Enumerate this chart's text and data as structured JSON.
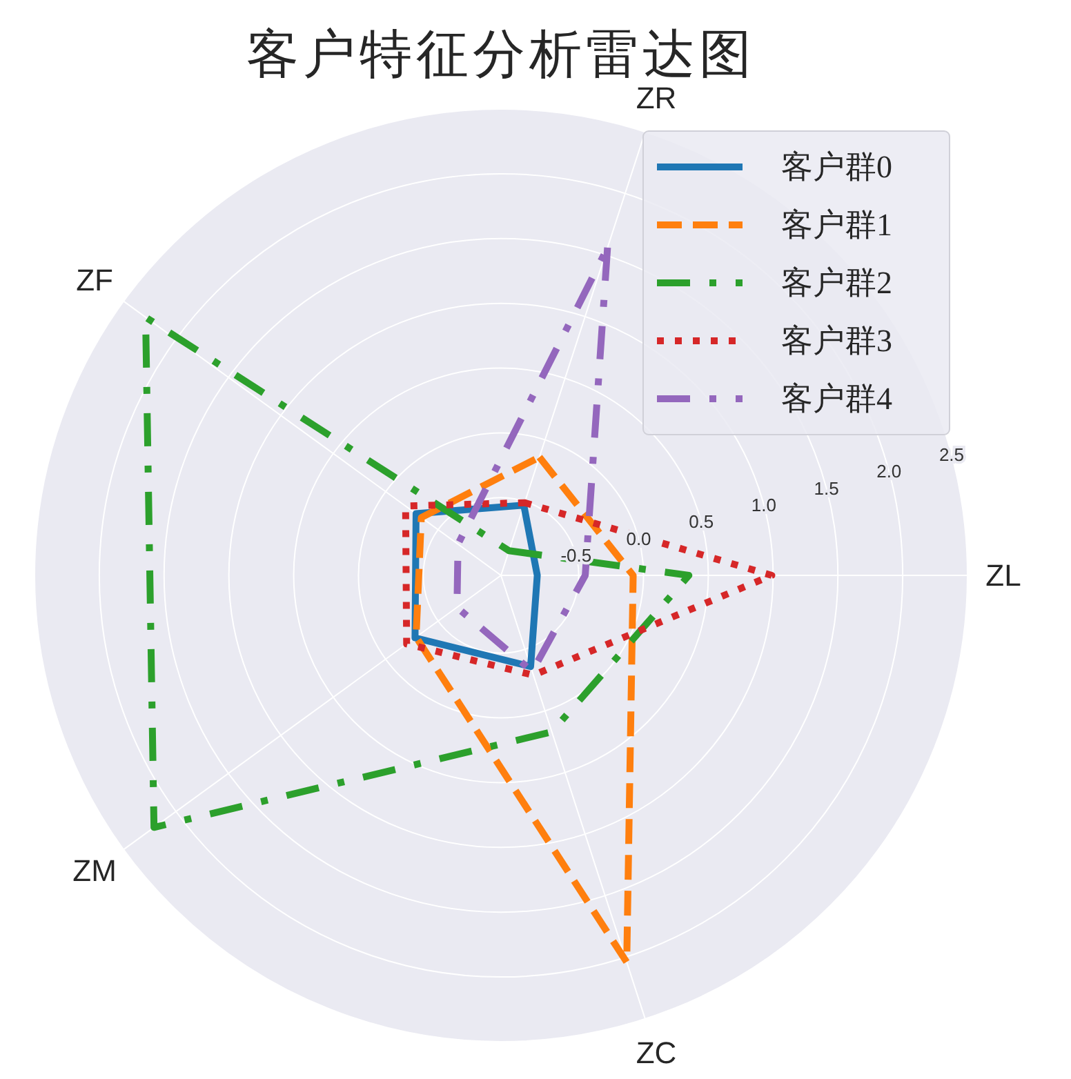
{
  "chart_data": {
    "type": "radar",
    "title": "客户特征分析雷达图",
    "categories": [
      "ZR",
      "ZL",
      "ZC",
      "ZM",
      "ZF"
    ],
    "ylim": [
      -1.1,
      2.5
    ],
    "yticks": [
      -0.5,
      {
        "value": 0,
        "label": "0.0"
      },
      0.5,
      {
        "value": 1,
        "label": "1.0"
      },
      1.5,
      {
        "value": 2,
        "label": "2.0"
      },
      2.5
    ],
    "grid": true,
    "legend": "top right",
    "series": [
      {
        "name": "客户群0",
        "color": "#1f77b4",
        "line_style": "solid",
        "values": [
          -0.53,
          -0.82,
          -0.36,
          -0.28,
          -0.29
        ]
      },
      {
        "name": "客户群1",
        "color": "#ff7f0e",
        "line_style": "dashed",
        "values": [
          -0.14,
          -0.08,
          2.04,
          -0.29,
          -0.34
        ]
      },
      {
        "name": "客户群2",
        "color": "#2ca02c",
        "line_style": "dashdot",
        "values": [
          -0.9,
          0.35,
          0.17,
          2.21,
          2.29
        ]
      },
      {
        "name": "客户群3",
        "color": "#d62728",
        "line_style": "dotted",
        "values": [
          -0.51,
          0.99,
          -0.29,
          -0.2,
          -0.19
        ]
      },
      {
        "name": "客户群4",
        "color": "#9467bd",
        "line_style": "dashdot",
        "values": [
          1.56,
          -0.45,
          -0.32,
          -0.68,
          -0.69
        ]
      }
    ]
  }
}
